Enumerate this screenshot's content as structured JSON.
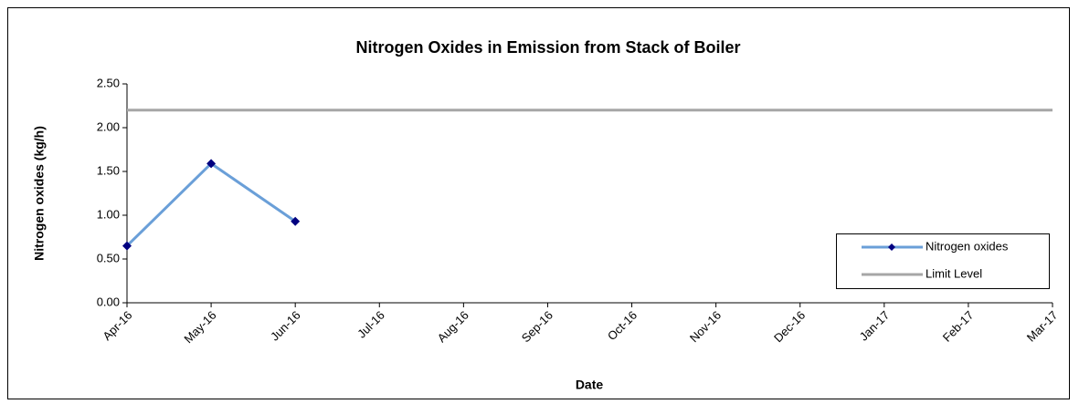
{
  "chart_data": {
    "type": "line",
    "title": "Nitrogen Oxides in Emission from Stack of Boiler",
    "x_label": "Date",
    "y_label": "Nitrogen oxides (kg/h)",
    "categories": [
      "Apr-16",
      "May-16",
      "Jun-16",
      "Jul-16",
      "Aug-16",
      "Sep-16",
      "Oct-16",
      "Nov-16",
      "Dec-16",
      "Jan-17",
      "Feb-17",
      "Mar-17"
    ],
    "series": [
      {
        "name": "Nitrogen oxides",
        "color": "#6a9fd8",
        "marker_color": "#000080",
        "values": [
          0.65,
          1.59,
          0.93,
          null,
          null,
          null,
          null,
          null,
          null,
          null,
          null,
          null
        ]
      },
      {
        "name": "Limit Level",
        "color": "#a6a6a6",
        "values": [
          2.2,
          2.2,
          2.2,
          2.2,
          2.2,
          2.2,
          2.2,
          2.2,
          2.2,
          2.2,
          2.2,
          2.2
        ]
      }
    ],
    "ylim": [
      0,
      2.5
    ],
    "yticks": [
      {
        "value": 0,
        "label": "0.00"
      },
      {
        "value": 0.5,
        "label": "0.50"
      },
      {
        "value": 1,
        "label": "1.00"
      },
      {
        "value": 1.5,
        "label": "1.50"
      },
      {
        "value": 2,
        "label": "2.00"
      },
      {
        "value": 2.5,
        "label": "2.50"
      }
    ],
    "grid": false,
    "legend_position": "right"
  }
}
